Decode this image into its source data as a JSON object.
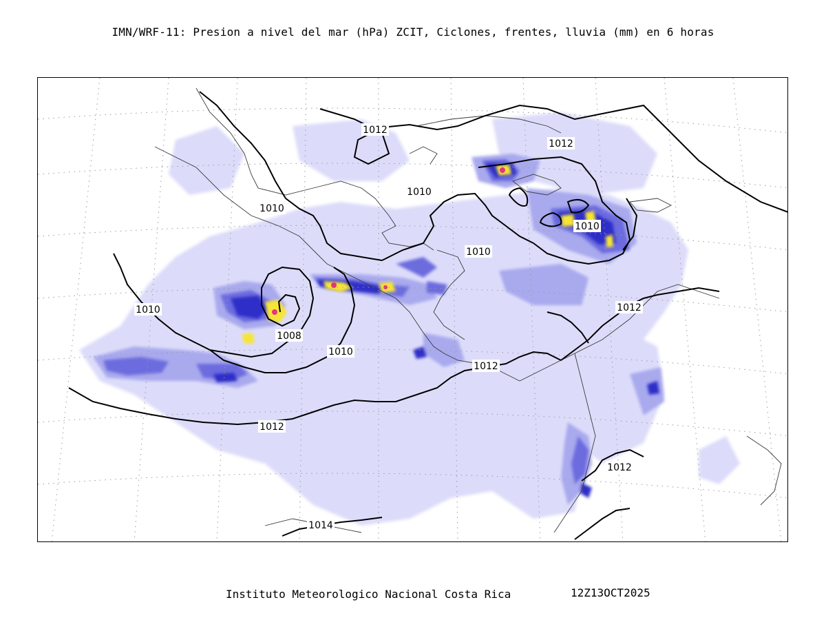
{
  "header": {
    "title": "IMN/WRF-11: Presion a nivel del mar (hPa) ZCIT, Ciclones, frentes, lluvia (mm) en 6 horas"
  },
  "map": {
    "isobar_labels": {
      "l1012_north": "1012",
      "l1012_northeast": "1012",
      "l1010_gulf": "1010",
      "l1010_pacific_north": "1010",
      "l1010_east": "1010",
      "l1010_caribbean": "1010",
      "l1010_west": "1010",
      "l1008_low": "1008",
      "l1010_south": "1010",
      "l1012_east": "1012",
      "l1012_panama": "1012",
      "l1012_south": "1012",
      "l1012_southeast": "1012",
      "l1014_bottom": "1014"
    },
    "colors": {
      "rain_light": "#dcdcfa",
      "rain_medium": "#a9a9ee",
      "rain_heavy": "#6c6cdf",
      "rain_very_heavy": "#2f2fc8",
      "rain_extreme": "#f7e536",
      "rain_max": "#e8337c",
      "isobar": "#000000",
      "coastline": "#3a3a3a",
      "graticule": "#9a9a9a"
    }
  },
  "footer": {
    "institution": "Instituto Meteorologico Nacional Costa Rica",
    "timestamp": "12Z13OCT2025"
  }
}
